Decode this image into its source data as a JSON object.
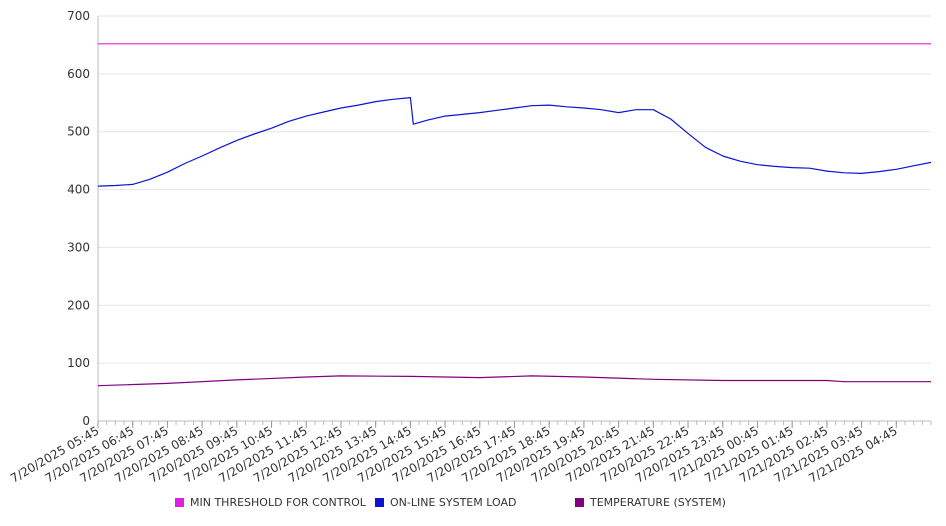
{
  "chart_data": {
    "type": "line",
    "title": "",
    "xlabel": "",
    "ylabel": "",
    "ylim": [
      0,
      700
    ],
    "yticks": [
      "0",
      "100",
      "200",
      "300",
      "400",
      "500",
      "600",
      "700"
    ],
    "grid": true,
    "legend_position": "bottom",
    "x_tick_labels": [
      "7/20/2025 05:45",
      "7/20/2025 06:45",
      "7/20/2025 07:45",
      "7/20/2025 08:45",
      "7/20/2025 09:45",
      "7/20/2025 10:45",
      "7/20/2025 11:45",
      "7/20/2025 12:45",
      "7/20/2025 13:45",
      "7/20/2025 14:45",
      "7/20/2025 15:45",
      "7/20/2025 16:45",
      "7/20/2025 17:45",
      "7/20/2025 18:45",
      "7/20/2025 19:45",
      "7/20/2025 20:45",
      "7/20/2025 21:45",
      "7/20/2025 22:45",
      "7/20/2025 23:45",
      "7/21/2025 00:45",
      "7/21/2025 01:45",
      "7/21/2025 02:45",
      "7/21/2025 03:45",
      "7/21/2025 04:45"
    ],
    "x_range": [
      "7/20/2025 05:45",
      "7/21/2025 05:45"
    ],
    "series": [
      {
        "name": "MIN THRESHOLD FOR CONTROL",
        "color": "#e020e0",
        "x": [
          "7/20/2025 05:45",
          "7/21/2025 05:45"
        ],
        "values": [
          652,
          652
        ]
      },
      {
        "name": "ON-LINE SYSTEM LOAD",
        "color": "#0a14d2",
        "x": [
          "7/20/2025 05:45",
          "7/20/2025 06:15",
          "7/20/2025 06:45",
          "7/20/2025 07:15",
          "7/20/2025 07:45",
          "7/20/2025 08:15",
          "7/20/2025 08:45",
          "7/20/2025 09:15",
          "7/20/2025 09:45",
          "7/20/2025 10:15",
          "7/20/2025 10:45",
          "7/20/2025 11:15",
          "7/20/2025 11:45",
          "7/20/2025 12:15",
          "7/20/2025 12:45",
          "7/20/2025 13:15",
          "7/20/2025 13:45",
          "7/20/2025 14:15",
          "7/20/2025 14:45",
          "7/20/2025 14:50",
          "7/20/2025 15:15",
          "7/20/2025 15:45",
          "7/20/2025 16:15",
          "7/20/2025 16:45",
          "7/20/2025 17:15",
          "7/20/2025 17:45",
          "7/20/2025 18:15",
          "7/20/2025 18:45",
          "7/20/2025 19:15",
          "7/20/2025 19:45",
          "7/20/2025 20:15",
          "7/20/2025 20:45",
          "7/20/2025 21:15",
          "7/20/2025 21:45",
          "7/20/2025 22:15",
          "7/20/2025 22:45",
          "7/20/2025 23:15",
          "7/20/2025 23:45",
          "7/21/2025 00:15",
          "7/21/2025 00:45",
          "7/21/2025 01:15",
          "7/21/2025 01:45",
          "7/21/2025 02:15",
          "7/21/2025 02:45",
          "7/21/2025 03:15",
          "7/21/2025 03:45",
          "7/21/2025 04:15",
          "7/21/2025 04:45",
          "7/21/2025 05:15",
          "7/21/2025 05:45"
        ],
        "values": [
          406,
          407,
          409,
          418,
          430,
          445,
          458,
          472,
          485,
          496,
          506,
          518,
          527,
          534,
          541,
          546,
          552,
          556,
          559,
          513,
          520,
          527,
          530,
          533,
          537,
          541,
          545,
          546,
          543,
          541,
          538,
          533,
          538,
          538,
          522,
          497,
          473,
          458,
          449,
          443,
          440,
          438,
          437,
          432,
          429,
          428,
          431,
          435,
          441,
          447
        ]
      },
      {
        "name": "TEMPERATURE (SYSTEM)",
        "color": "#800080",
        "x": [
          "7/20/2025 05:45",
          "7/20/2025 07:45",
          "7/20/2025 09:45",
          "7/20/2025 11:45",
          "7/20/2025 12:45",
          "7/20/2025 14:45",
          "7/20/2025 16:45",
          "7/20/2025 18:15",
          "7/20/2025 19:45",
          "7/20/2025 21:45",
          "7/20/2025 23:45",
          "7/21/2025 02:45",
          "7/21/2025 03:15",
          "7/21/2025 05:45"
        ],
        "values": [
          61,
          65,
          71,
          76,
          78,
          77,
          75,
          78,
          76,
          72,
          70,
          70,
          68,
          68
        ]
      }
    ]
  }
}
